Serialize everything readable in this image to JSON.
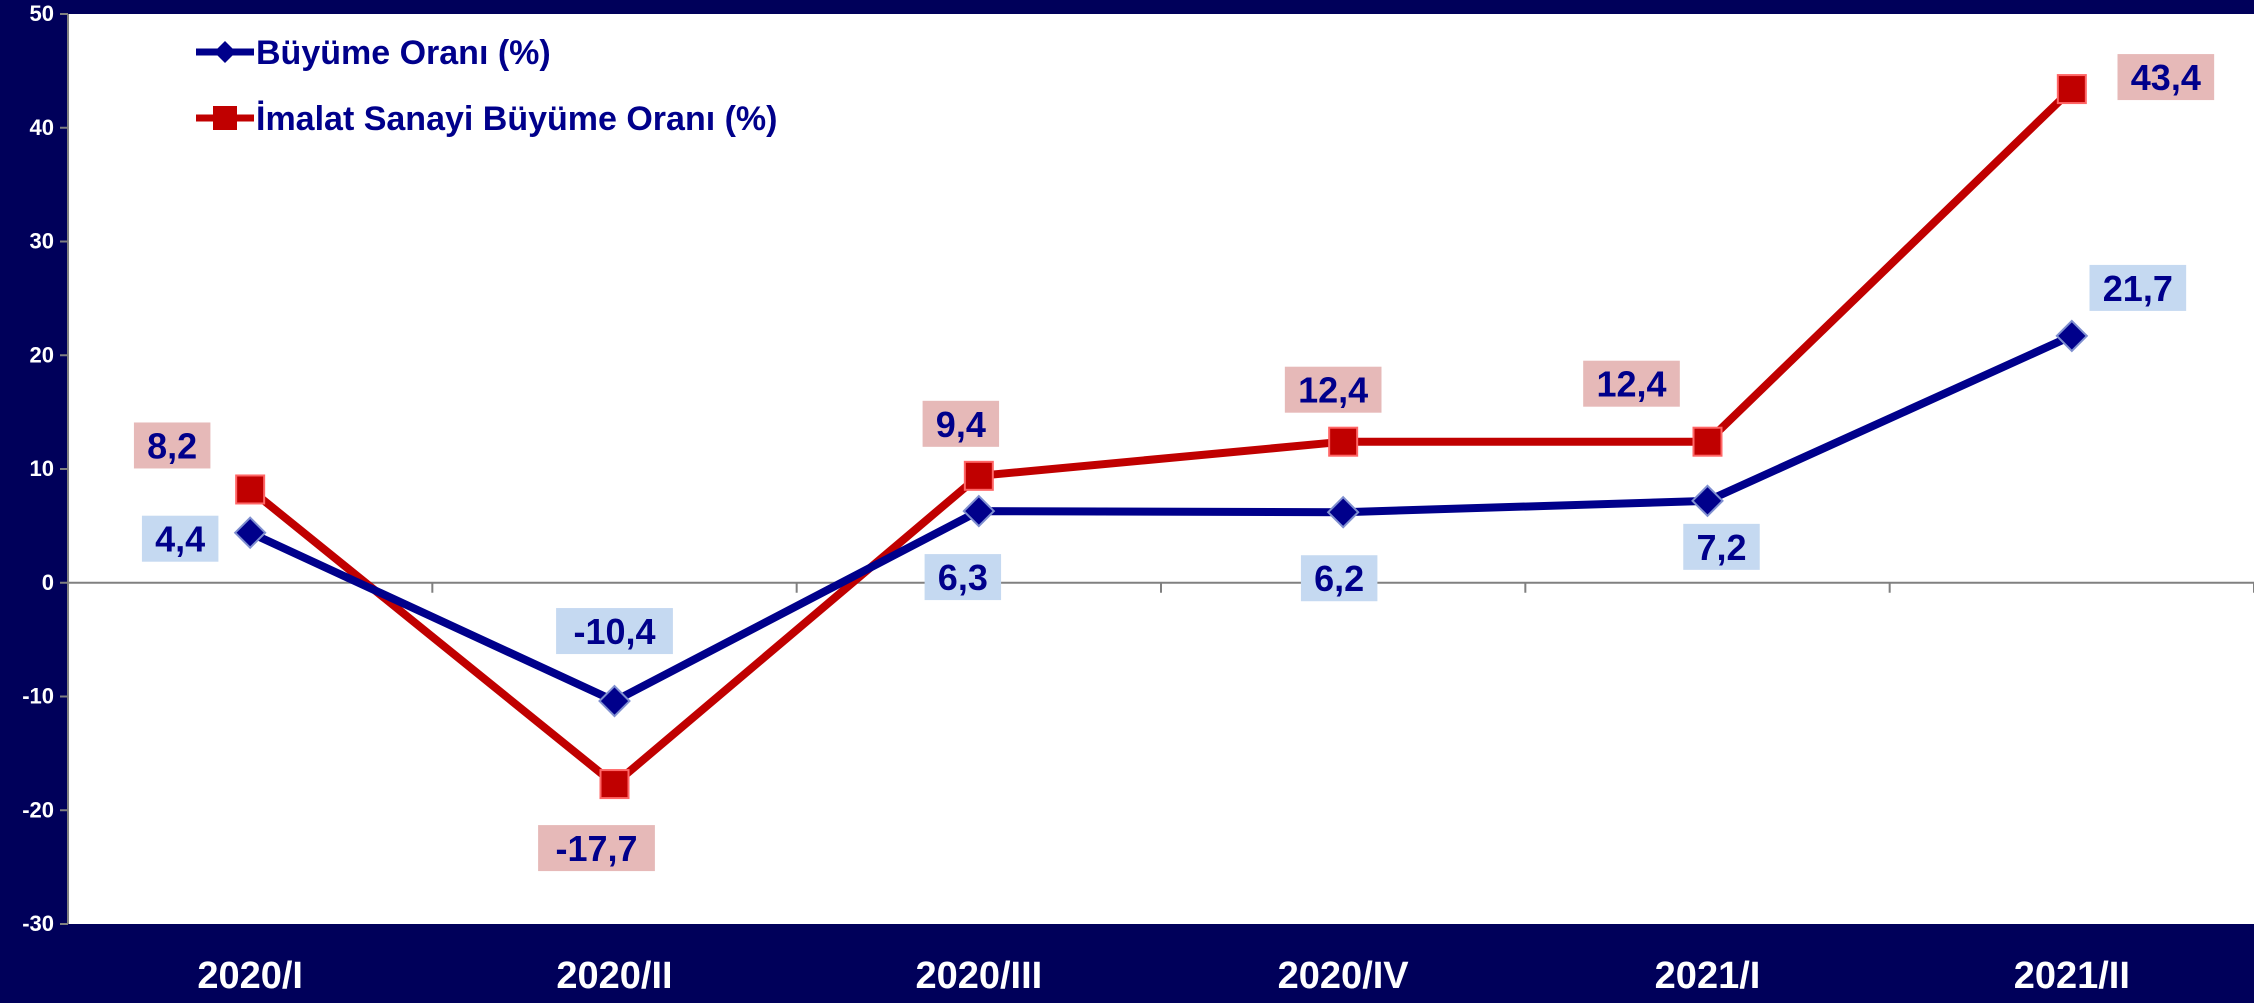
{
  "chart_data": {
    "type": "line",
    "title": "",
    "xlabel": "",
    "ylabel": "",
    "categories": [
      "2020/I",
      "2020/II",
      "2020/III",
      "2020/IV",
      "2021/I",
      "2021/II"
    ],
    "ylim": [
      -30,
      50
    ],
    "yticks": [
      50,
      40,
      30,
      20,
      10,
      0,
      -10,
      -20,
      -30
    ],
    "grid": false,
    "legend_position": "top-left",
    "series": [
      {
        "name": "Büyüme Oranı (%)",
        "values": [
          4.4,
          -10.4,
          6.3,
          6.2,
          7.2,
          21.7
        ],
        "labels": [
          "4,4",
          "-10,4",
          "6,3",
          "6,2",
          "7,2",
          "21,7"
        ],
        "color": "#00008b",
        "label_bg": "#c5d9f1",
        "marker": "diamond"
      },
      {
        "name": "İmalat Sanayi Büyüme Oranı (%)",
        "values": [
          8.2,
          -17.7,
          9.4,
          12.4,
          12.4,
          43.4
        ],
        "labels": [
          "8,2",
          "-17,7",
          "9,4",
          "12,4",
          "12,4",
          "43,4"
        ],
        "color": "#c00000",
        "label_bg": "#e6b9b8",
        "marker": "square"
      }
    ],
    "colors": {
      "frame": "#00005a",
      "plot_background": "#ffffff",
      "axis_text": "#ffffff",
      "label_text": "#00008b"
    }
  }
}
